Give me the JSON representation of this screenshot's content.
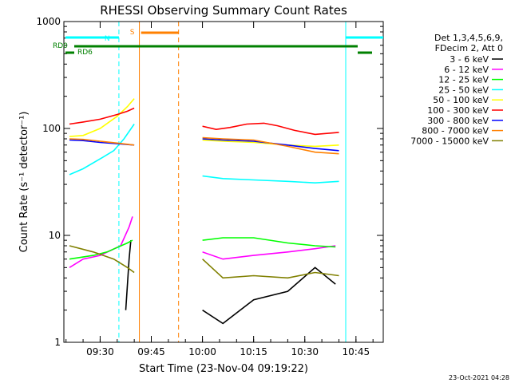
{
  "chart_data": {
    "type": "line",
    "title": "RHESSI Observing Summary Count Rates",
    "xlabel": "Start Time (23-Nov-04 09:19:22)",
    "ylabel": "Count Rate (s⁻¹ detector⁻¹)",
    "y_scale": "log",
    "ylim": [
      1,
      1000
    ],
    "xlim": [
      "09:19:22",
      "10:53:00"
    ],
    "x_ticks": [
      "09:30",
      "09:45",
      "10:00",
      "10:15",
      "10:30",
      "10:45"
    ],
    "y_ticks": [
      "1",
      "10",
      "100",
      "1000"
    ],
    "legend": {
      "placement": "right",
      "header": [
        "Det 1,3,4,5,6,9,",
        "FDecim 2, Att 0"
      ]
    },
    "series": [
      {
        "name": "3 - 6 keV",
        "color": "#000000",
        "points": [
          [
            "09:37:30",
            2.0
          ],
          [
            "09:38:30",
            6.0
          ],
          [
            "09:39:00",
            9.0
          ],
          [
            "10:00:00",
            2.0
          ],
          [
            "10:06:00",
            1.5
          ],
          [
            "10:15:00",
            2.5
          ],
          [
            "10:25:00",
            3.0
          ],
          [
            "10:33:00",
            5.0
          ],
          [
            "10:39:00",
            3.5
          ]
        ]
      },
      {
        "name": "6 - 12 keV",
        "color": "#ff00ff",
        "points": [
          [
            "09:21:00",
            5.0
          ],
          [
            "09:25:00",
            6.0
          ],
          [
            "09:30:00",
            6.5
          ],
          [
            "09:36:00",
            8.0
          ],
          [
            "09:38:30",
            12.0
          ],
          [
            "09:39:30",
            15.0
          ],
          [
            "10:00:00",
            7.0
          ],
          [
            "10:06:00",
            6.0
          ],
          [
            "10:15:00",
            6.5
          ],
          [
            "10:25:00",
            7.0
          ],
          [
            "10:33:00",
            7.5
          ],
          [
            "10:39:00",
            8.0
          ]
        ]
      },
      {
        "name": "12 - 25 keV",
        "color": "#00ff00",
        "points": [
          [
            "09:21:00",
            6.0
          ],
          [
            "09:28:00",
            6.5
          ],
          [
            "09:32:00",
            7.0
          ],
          [
            "09:38:00",
            8.5
          ],
          [
            "09:39:30",
            9.0
          ],
          [
            "10:00:00",
            9.0
          ],
          [
            "10:06:00",
            9.5
          ],
          [
            "10:15:00",
            9.5
          ],
          [
            "10:25:00",
            8.5
          ],
          [
            "10:33:00",
            8.0
          ],
          [
            "10:39:00",
            7.8
          ]
        ]
      },
      {
        "name": "25 - 50 keV",
        "color": "#00ffff",
        "points": [
          [
            "09:21:00",
            37
          ],
          [
            "09:25:00",
            42
          ],
          [
            "09:30:00",
            52
          ],
          [
            "09:34:00",
            62
          ],
          [
            "09:37:00",
            80
          ],
          [
            "09:40:00",
            110
          ],
          [
            "10:00:00",
            36
          ],
          [
            "10:06:00",
            34
          ],
          [
            "10:15:00",
            33
          ],
          [
            "10:25:00",
            32
          ],
          [
            "10:33:00",
            31
          ],
          [
            "10:40:00",
            32
          ]
        ]
      },
      {
        "name": "50 - 100 keV",
        "color": "#ffff00",
        "points": [
          [
            "09:21:00",
            84
          ],
          [
            "09:25:00",
            86
          ],
          [
            "09:30:00",
            100
          ],
          [
            "09:35:00",
            130
          ],
          [
            "09:38:00",
            160
          ],
          [
            "09:40:00",
            190
          ],
          [
            "10:00:00",
            78
          ],
          [
            "10:06:00",
            76
          ],
          [
            "10:15:00",
            74
          ],
          [
            "10:25:00",
            70
          ],
          [
            "10:33:00",
            68
          ],
          [
            "10:40:00",
            70
          ]
        ]
      },
      {
        "name": "100 - 300 keV",
        "color": "#ff0000",
        "points": [
          [
            "09:21:00",
            110
          ],
          [
            "09:25:00",
            115
          ],
          [
            "09:30:00",
            122
          ],
          [
            "09:35:00",
            135
          ],
          [
            "09:38:00",
            145
          ],
          [
            "09:40:00",
            155
          ],
          [
            "10:00:00",
            105
          ],
          [
            "10:04:00",
            98
          ],
          [
            "10:08:00",
            102
          ],
          [
            "10:13:00",
            110
          ],
          [
            "10:18:00",
            112
          ],
          [
            "10:22:00",
            106
          ],
          [
            "10:27:00",
            96
          ],
          [
            "10:33:00",
            88
          ],
          [
            "10:40:00",
            92
          ]
        ]
      },
      {
        "name": "300 - 800 keV",
        "color": "#0000ff",
        "points": [
          [
            "09:21:00",
            78
          ],
          [
            "09:25:00",
            77
          ],
          [
            "09:30:00",
            74
          ],
          [
            "09:35:00",
            72
          ],
          [
            "09:40:00",
            70
          ],
          [
            "10:00:00",
            80
          ],
          [
            "10:06:00",
            78
          ],
          [
            "10:15:00",
            76
          ],
          [
            "10:25:00",
            70
          ],
          [
            "10:33:00",
            65
          ],
          [
            "10:40:00",
            62
          ]
        ]
      },
      {
        "name": "800 - 7000 keV",
        "color": "#ff8000",
        "points": [
          [
            "09:21:00",
            80
          ],
          [
            "09:25:00",
            79
          ],
          [
            "09:30:00",
            76
          ],
          [
            "09:35:00",
            73
          ],
          [
            "09:40:00",
            70
          ],
          [
            "10:00:00",
            82
          ],
          [
            "10:06:00",
            80
          ],
          [
            "10:15:00",
            78
          ],
          [
            "10:25:00",
            68
          ],
          [
            "10:33:00",
            60
          ],
          [
            "10:40:00",
            58
          ]
        ]
      },
      {
        "name": "7000 - 15000 keV",
        "color": "#808000",
        "points": [
          [
            "09:21:00",
            8.0
          ],
          [
            "09:28:00",
            7.0
          ],
          [
            "09:34:00",
            6.0
          ],
          [
            "09:38:00",
            5.0
          ],
          [
            "09:40:00",
            4.5
          ],
          [
            "10:00:00",
            6.0
          ],
          [
            "10:06:00",
            4.0
          ],
          [
            "10:15:00",
            4.2
          ],
          [
            "10:25:00",
            4.0
          ],
          [
            "10:33:00",
            4.5
          ],
          [
            "10:40:00",
            4.2
          ]
        ]
      }
    ],
    "annotations": {
      "N": {
        "label": "N",
        "color": "#00ffff",
        "start": "09:19:22",
        "end": "09:35:30"
      },
      "N2": {
        "color": "#00ffff",
        "start": "10:42:00",
        "end": "10:53:00"
      },
      "S": {
        "label": "S",
        "color": "#ff8000",
        "start": "09:42:00",
        "end": "09:53:00"
      },
      "RD0": {
        "label": "RD0",
        "color": "#008000"
      },
      "RD6": {
        "label": "RD6",
        "color": "#008000"
      },
      "vlines_solid": [
        {
          "time": "09:19:22",
          "color": "#00ffff"
        },
        {
          "time": "09:41:30",
          "color": "#ff8000"
        },
        {
          "time": "10:42:00",
          "color": "#00ffff"
        }
      ],
      "vlines_dashed": [
        {
          "time": "09:35:30",
          "color": "#00ffff"
        },
        {
          "time": "09:53:00",
          "color": "#ff8000"
        },
        {
          "time": "10:53:00",
          "color": "#00ffff"
        }
      ]
    }
  },
  "footer": {
    "timestamp": "23-Oct-2021 04:28"
  }
}
